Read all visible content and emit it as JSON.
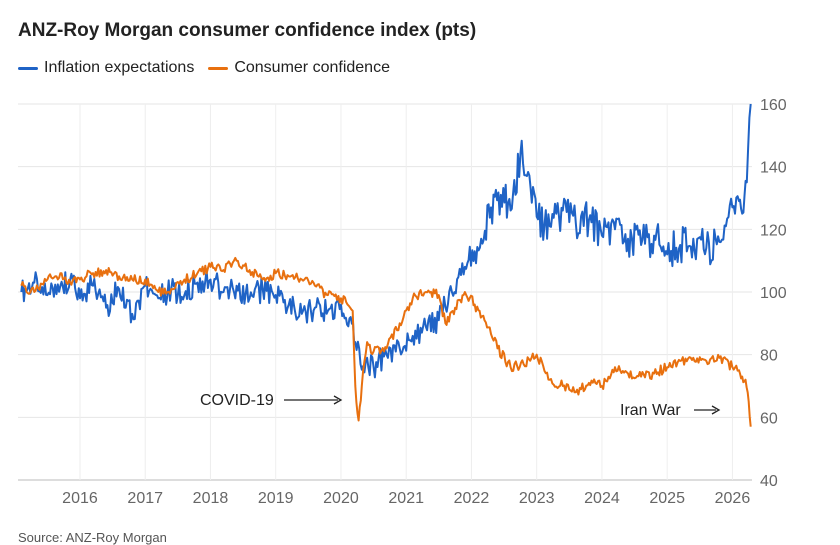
{
  "chart_data": {
    "type": "line",
    "title": "ANZ-Roy Morgan consumer confidence index (pts)",
    "xlabel": "",
    "ylabel": "",
    "xlim": [
      2015.05,
      2026.3
    ],
    "ylim": [
      40,
      160
    ],
    "x_ticks": [
      2016,
      2017,
      2018,
      2019,
      2020,
      2021,
      2022,
      2023,
      2024,
      2025,
      2026
    ],
    "y_ticks": [
      40,
      60,
      80,
      100,
      120,
      140,
      160
    ],
    "grid": true,
    "legend_position": "top-left",
    "series": [
      {
        "name": "Inflation expectations",
        "color": "#1f63c6",
        "x": [
          2015.1,
          2015.3,
          2015.5,
          2015.7,
          2015.85,
          2016.0,
          2016.2,
          2016.4,
          2016.6,
          2016.8,
          2017.0,
          2017.2,
          2017.4,
          2017.6,
          2017.8,
          2018.0,
          2018.2,
          2018.4,
          2018.6,
          2018.8,
          2019.0,
          2019.2,
          2019.4,
          2019.6,
          2019.8,
          2020.0,
          2020.15,
          2020.22,
          2020.3,
          2020.5,
          2020.7,
          2020.9,
          2021.1,
          2021.3,
          2021.5,
          2021.7,
          2021.9,
          2022.05,
          2022.15,
          2022.3,
          2022.45,
          2022.6,
          2022.75,
          2022.85,
          2023.0,
          2023.2,
          2023.4,
          2023.6,
          2023.8,
          2024.0,
          2024.2,
          2024.4,
          2024.6,
          2024.8,
          2025.0,
          2025.2,
          2025.4,
          2025.6,
          2025.8,
          2025.9,
          2026.0,
          2026.1,
          2026.15,
          2026.22,
          2026.28
        ],
        "values": [
          100,
          103,
          99,
          102,
          104,
          98,
          102,
          95,
          101,
          93,
          102,
          98,
          101,
          99,
          103,
          104,
          100,
          102,
          98,
          101,
          99,
          96,
          93,
          95,
          94,
          96,
          92,
          84,
          77,
          76,
          80,
          82,
          86,
          89,
          91,
          100,
          108,
          113,
          117,
          127,
          131,
          126,
          144,
          137,
          124,
          121,
          126,
          122,
          123,
          118,
          120,
          117,
          115,
          118,
          112,
          115,
          117,
          114,
          116,
          121,
          127,
          129,
          125,
          135,
          160
        ]
      },
      {
        "name": "Consumer confidence",
        "color": "#e8700f",
        "x": [
          2015.1,
          2015.3,
          2015.5,
          2015.7,
          2015.85,
          2016.0,
          2016.2,
          2016.4,
          2016.6,
          2016.8,
          2017.0,
          2017.2,
          2017.4,
          2017.6,
          2017.8,
          2018.0,
          2018.2,
          2018.4,
          2018.6,
          2018.8,
          2019.0,
          2019.2,
          2019.4,
          2019.6,
          2019.8,
          2020.0,
          2020.1,
          2020.18,
          2020.22,
          2020.27,
          2020.32,
          2020.4,
          2020.5,
          2020.7,
          2020.9,
          2021.1,
          2021.3,
          2021.5,
          2021.6,
          2021.75,
          2021.9,
          2022.05,
          2022.2,
          2022.4,
          2022.6,
          2022.8,
          2023.0,
          2023.2,
          2023.4,
          2023.6,
          2023.8,
          2024.0,
          2024.2,
          2024.4,
          2024.6,
          2024.8,
          2025.0,
          2025.2,
          2025.4,
          2025.6,
          2025.8,
          2026.0,
          2026.1,
          2026.15,
          2026.2,
          2026.25,
          2026.28
        ],
        "values": [
          102,
          100,
          104,
          106,
          103,
          104,
          106,
          107,
          105,
          104,
          104,
          100,
          101,
          104,
          106,
          108,
          107,
          110,
          107,
          104,
          106,
          105,
          104,
          102,
          99,
          98,
          96,
          94,
          70,
          59,
          70,
          84,
          81,
          82,
          90,
          98,
          100,
          99,
          90,
          95,
          100,
          96,
          91,
          82,
          76,
          77,
          80,
          72,
          70,
          68,
          71,
          70,
          76,
          74,
          73,
          74,
          76,
          78,
          79,
          78,
          79,
          76,
          75,
          73,
          72,
          65,
          57
        ]
      }
    ],
    "annotations": [
      {
        "text": "COVID-19"
      },
      {
        "text": "Iran War"
      }
    ],
    "source_text": "Source: ANZ-Roy Morgan"
  }
}
